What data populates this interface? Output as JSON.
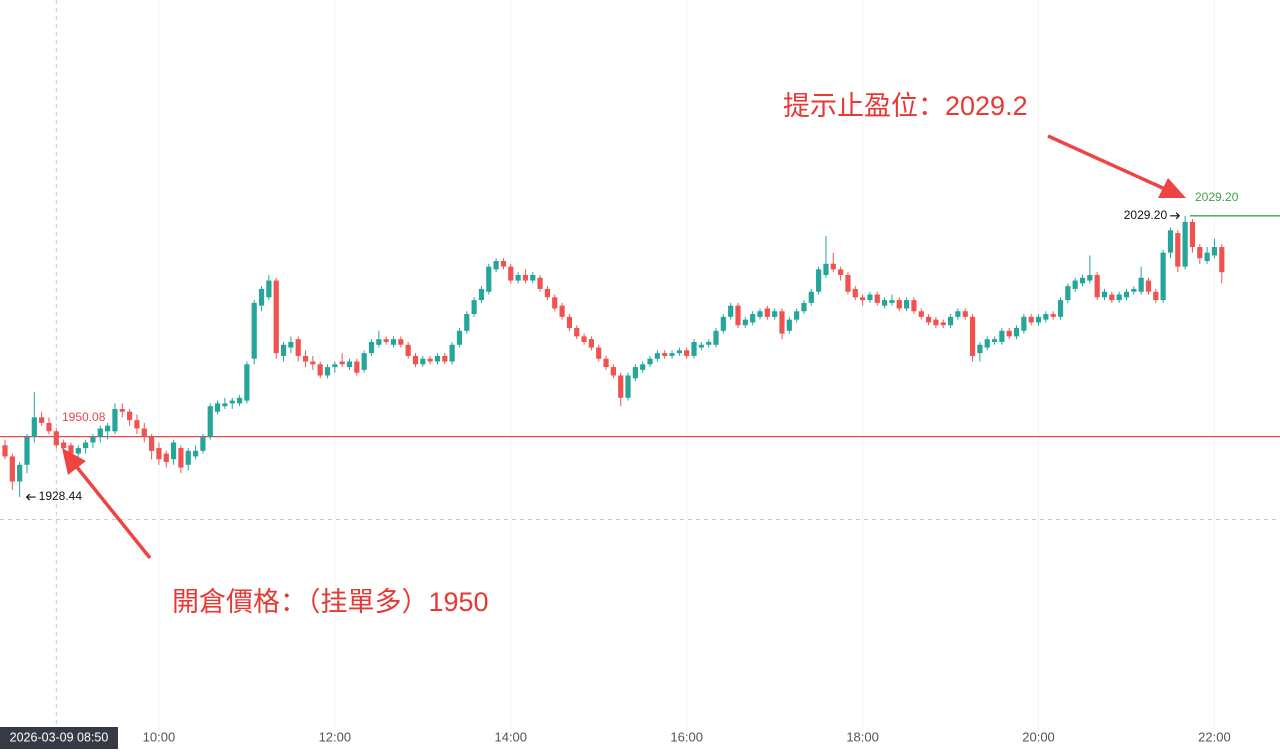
{
  "chart_data": {
    "type": "candlestick",
    "up_color": "#26a69a",
    "down_color": "#ef5350",
    "ylim": [
      1845,
      2106.5
    ],
    "categories": [
      null,
      null,
      null,
      null,
      null,
      null,
      null,
      null,
      null,
      null,
      null,
      null,
      null,
      null,
      null,
      null,
      null,
      null,
      null,
      null,
      null,
      "10:00",
      null,
      null,
      null,
      null,
      null,
      null,
      null,
      null,
      null,
      null,
      null,
      null,
      null,
      null,
      null,
      null,
      null,
      null,
      null,
      null,
      null,
      null,
      null,
      "12:00",
      null,
      null,
      null,
      null,
      null,
      null,
      null,
      null,
      null,
      null,
      null,
      null,
      null,
      null,
      null,
      null,
      null,
      null,
      null,
      null,
      null,
      null,
      null,
      "14:00",
      null,
      null,
      null,
      null,
      null,
      null,
      null,
      null,
      null,
      null,
      null,
      null,
      null,
      null,
      null,
      null,
      null,
      null,
      null,
      null,
      null,
      null,
      null,
      "16:00",
      null,
      null,
      null,
      null,
      null,
      null,
      null,
      null,
      null,
      null,
      null,
      null,
      null,
      null,
      null,
      null,
      null,
      null,
      null,
      null,
      null,
      null,
      null,
      "18:00",
      null,
      null,
      null,
      null,
      null,
      null,
      null,
      null,
      null,
      null,
      null,
      null,
      null,
      null,
      null,
      null,
      null,
      null,
      null,
      null,
      null,
      null,
      null,
      "20:00",
      null,
      null,
      null,
      null,
      null,
      null,
      null,
      null,
      null,
      null,
      null,
      null,
      null,
      null,
      null,
      null,
      null,
      null,
      null,
      null,
      null,
      null,
      null,
      "22:00",
      null
    ],
    "open": [
      1947,
      1943,
      1934,
      1940,
      1950,
      1957,
      1955,
      1952,
      1948,
      1947,
      1944,
      1946,
      1948,
      1950,
      1952,
      1952,
      1960,
      1959,
      1956,
      1953,
      1950,
      1946,
      1944,
      1942,
      1946,
      1940,
      1943,
      1945,
      1950,
      1959,
      1961,
      1962,
      1962,
      1963,
      1978,
      1997,
      2000,
      2006,
      1979,
      1982,
      1985,
      1979,
      1977,
      1976,
      1972,
      1975,
      1977,
      1975,
      1977,
      1974,
      1980,
      1983,
      1985,
      1983,
      1985,
      1983,
      1979,
      1976,
      1978,
      1977,
      1979,
      1977,
      1983,
      1988,
      1994,
      1999,
      2002,
      2010,
      2013,
      2011,
      2006,
      2008,
      2006,
      2007,
      2003,
      2000,
      1997,
      1993,
      1989,
      1986,
      1985,
      1982,
      1978,
      1975,
      1972,
      1964,
      1971,
      1974,
      1976,
      1978,
      1980,
      1979,
      1980,
      1981,
      1979,
      1982,
      1983,
      1983,
      1988,
      1993,
      1997,
      1990,
      1991,
      1993,
      1996,
      1993,
      1995,
      1988,
      1992,
      1995,
      1998,
      2002,
      2008,
      2012,
      2010,
      2008,
      2003,
      2000,
      1999,
      2001,
      1997,
      1998,
      1999,
      1996,
      1999,
      1995,
      1993,
      1992,
      1991,
      1990,
      1993,
      1995,
      1993,
      1980,
      1982,
      1984,
      1984,
      1988,
      1986,
      1988,
      1993,
      1991,
      1992,
      1994,
      1993,
      1999,
      2003,
      2005,
      2006,
      2008,
      2000,
      2001,
      1999,
      2000,
      2002,
      2002,
      2006,
      2002,
      1999,
      2016,
      2023,
      2011,
      2027,
      2018,
      2013,
      2015,
      2018
    ],
    "high": [
      1949,
      1944,
      1941,
      1951,
      1966,
      1959,
      1957,
      1953,
      1949,
      1948,
      1947,
      1949,
      1951,
      1954,
      1955,
      1962,
      1962,
      1960,
      1958,
      1955,
      1951,
      1948,
      1945,
      1949,
      1947,
      1946,
      1947,
      1951,
      1962,
      1963,
      1964,
      1964,
      1965,
      1977,
      1999,
      2004,
      2008,
      2007,
      1984,
      1986,
      1986,
      1981,
      1979,
      1977,
      1976,
      1977,
      1980,
      1978,
      1978,
      1981,
      1985,
      1988,
      1986,
      1986,
      1986,
      1984,
      1980,
      1979,
      1979,
      1980,
      1980,
      1984,
      1989,
      1995,
      2000,
      2004,
      2012,
      2014,
      2014,
      2012,
      2009,
      2010,
      2009,
      2008,
      2004,
      2001,
      1998,
      1994,
      1990,
      1987,
      1986,
      1983,
      1979,
      1976,
      1973,
      1973,
      1976,
      1977,
      1979,
      1981,
      1981,
      1981,
      1982,
      1982,
      1985,
      1984,
      1985,
      1989,
      1994,
      1998,
      1998,
      1993,
      1995,
      1996,
      1997,
      1996,
      1996,
      1993,
      1996,
      1999,
      2003,
      2011,
      2022,
      2016,
      2011,
      2009,
      2004,
      2001,
      2002,
      2002,
      2000,
      2001,
      2000,
      2000,
      2000,
      1996,
      1994,
      1993,
      1992,
      1994,
      1996,
      1996,
      1994,
      1984,
      1986,
      1986,
      1989,
      1989,
      1990,
      1994,
      1994,
      1994,
      1995,
      1995,
      2000,
      2005,
      2007,
      2008,
      2015,
      2009,
      2003,
      2002,
      2002,
      2003,
      2004,
      2011,
      2007,
      2003,
      2017,
      2025,
      2024,
      2029.2,
      2028,
      2019,
      2018,
      2021,
      2019
    ],
    "low": [
      1942,
      1931,
      1928.44,
      1937,
      1948,
      1954,
      1951,
      1946,
      1944,
      1942,
      1942,
      1944,
      1946,
      1948,
      1949,
      1951,
      1957,
      1954,
      1951,
      1948,
      1942,
      1940,
      1939,
      1940,
      1937,
      1938,
      1942,
      1944,
      1949,
      1958,
      1960,
      1960,
      1961,
      1962,
      1976,
      1995,
      1999,
      1978,
      1977,
      1980,
      1977,
      1975,
      1974,
      1971,
      1971,
      1973,
      1975,
      1974,
      1972,
      1973,
      1979,
      1982,
      1983,
      1982,
      1982,
      1978,
      1975,
      1975,
      1976,
      1976,
      1976,
      1976,
      1982,
      1987,
      1993,
      1998,
      2001,
      2009,
      2010,
      2005,
      2005,
      2005,
      2005,
      2002,
      1999,
      1995,
      1992,
      1988,
      1985,
      1983,
      1981,
      1977,
      1974,
      1971,
      1961,
      1963,
      1970,
      1973,
      1975,
      1977,
      1978,
      1978,
      1979,
      1978,
      1978,
      1981,
      1982,
      1982,
      1987,
      1992,
      1989,
      1989,
      1990,
      1992,
      1992,
      1992,
      1985,
      1987,
      1991,
      1994,
      1997,
      2001,
      2007,
      2009,
      2006,
      2001,
      1999,
      1997,
      1998,
      1997,
      1996,
      1997,
      1995,
      1995,
      1994,
      1992,
      1990,
      1989,
      1989,
      1989,
      1992,
      1992,
      1977,
      1977,
      1981,
      1983,
      1983,
      1985,
      1985,
      1987,
      1990,
      1990,
      1991,
      1992,
      1992,
      1998,
      2002,
      2004,
      2005,
      1999,
      1999,
      1998,
      1998,
      1999,
      2001,
      2001,
      2001,
      1998,
      1998,
      2014,
      2009,
      2010,
      2016,
      2012,
      2012,
      2014,
      2005
    ],
    "close": [
      1943,
      1934,
      1940,
      1950,
      1957,
      1955,
      1952,
      1947,
      1946,
      1944,
      1946,
      1948,
      1950,
      1953,
      1954,
      1960,
      1959,
      1956,
      1953,
      1950,
      1945,
      1942,
      1941,
      1948,
      1939,
      1945,
      1945,
      1950,
      1961,
      1962,
      1962,
      1963,
      1964,
      1976,
      1998,
      2003,
      2006,
      1980,
      1983,
      1984,
      1979,
      1977,
      1976,
      1972,
      1975,
      1976,
      1976,
      1977,
      1973,
      1980,
      1984,
      1985,
      1984,
      1985,
      1983,
      1979,
      1976,
      1978,
      1977,
      1979,
      1977,
      1983,
      1988,
      1994,
      1999,
      2003,
      2011,
      2013,
      2011,
      2006,
      2008,
      2006,
      2008,
      2003,
      2000,
      1996,
      1993,
      1989,
      1986,
      1984,
      1982,
      1978,
      1975,
      1972,
      1964,
      1972,
      1975,
      1976,
      1978,
      1980,
      1979,
      1980,
      1981,
      1979,
      1984,
      1983,
      1984,
      1988,
      1993,
      1997,
      1990,
      1992,
      1994,
      1995,
      1993,
      1995,
      1987,
      1992,
      1995,
      1998,
      2002,
      2010,
      2012,
      2010,
      2008,
      2002,
      2000,
      1999,
      2001,
      1998,
      1999,
      1999,
      1996,
      1999,
      1995,
      1993,
      1991,
      1990,
      1990,
      1993,
      1995,
      1993,
      1979,
      1983,
      1985,
      1985,
      1988,
      1986,
      1989,
      1993,
      1991,
      1993,
      1994,
      1993,
      1999,
      2004,
      2006,
      2007,
      2008,
      2000,
      2002,
      1999,
      2001,
      2002,
      2003,
      2007,
      2002,
      1999,
      2016,
      2024,
      2011,
      2027,
      2018,
      2014,
      2016,
      2018,
      2009
    ],
    "entry_line": {
      "value": 1950.08,
      "color": "#e5484d"
    },
    "take_profit_line": {
      "value": {
        "value": 2029.2,
        "label": "2029.20"
      },
      "color": "#43a047"
    },
    "low_marker": 1928.44,
    "high_marker": {
      "value": 2029.2,
      "label": "2029.20"
    },
    "crosshair": {
      "label": "2026-03-09 08:50",
      "index": 7,
      "price": 1920.4
    },
    "annotations": [
      "提示止盈位：2029.2",
      "開倉價格：（挂單多）1950"
    ]
  }
}
